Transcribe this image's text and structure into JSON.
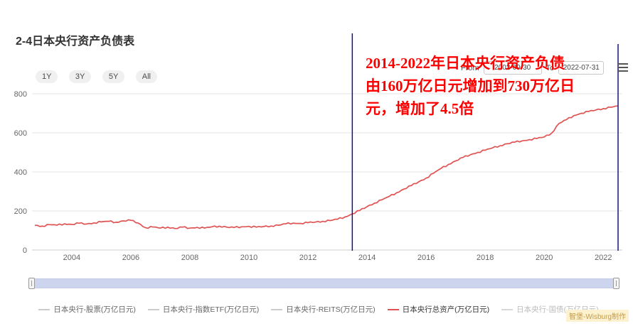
{
  "title": "2-4日本央行资产负债表",
  "range_buttons": [
    "1Y",
    "3Y",
    "5Y",
    "All"
  ],
  "date_range": {
    "from_label": "From",
    "from_value": "2002-09-30",
    "to_label": "To",
    "to_value": "2022-07-31"
  },
  "annotation": {
    "lines": [
      "2014-2022年日本央行资产负债",
      "由160万亿日元增加到730万亿日",
      "元，增加了4.5倍"
    ],
    "color": "#ff0000"
  },
  "legend": [
    {
      "label": "日本央行-股票(万亿日元)",
      "color": "#cccccc",
      "text_color": "#666666",
      "active": false
    },
    {
      "label": "日本央行-指数ETF(万亿日元)",
      "color": "#cccccc",
      "text_color": "#666666",
      "active": false
    },
    {
      "label": "日本央行-REITS(万亿日元)",
      "color": "#cccccc",
      "text_color": "#666666",
      "active": false
    },
    {
      "label": "日本央行总资产(万亿日元)",
      "color": "#df5353",
      "text_color": "#333333",
      "active": true
    },
    {
      "label": "日本央行-国债(万亿日元)",
      "color": "#d8d8d8",
      "text_color": "#bbbbbb",
      "active": false
    }
  ],
  "watermark": "智堡-Wisburg制作",
  "chart_data": {
    "type": "line",
    "title": "2-4日本央行资产负债表",
    "xlabel": "",
    "ylabel": "万亿日元",
    "grid": "horizontal",
    "legend_position": "bottom",
    "x_ticks": [
      2004,
      2006,
      2008,
      2010,
      2012,
      2014,
      2016,
      2018,
      2020,
      2022
    ],
    "y_ticks": [
      0,
      200,
      400,
      600,
      800
    ],
    "x_range": [
      2002.75,
      2022.5
    ],
    "y_range": [
      0,
      800
    ],
    "x_start": 2002.75,
    "x_step": 0.25,
    "plot_lines": [
      {
        "x": 2013.5,
        "color": "#15157a"
      },
      {
        "x": 2022.5,
        "color": "#15157a"
      }
    ],
    "series": [
      {
        "name": "日本央行总资产(万亿日元)",
        "color": "#df5353",
        "values": [
          126,
          122,
          130,
          127,
          134,
          131,
          137,
          133,
          139,
          144,
          147,
          142,
          149,
          152,
          138,
          114,
          118,
          112,
          117,
          110,
          117,
          112,
          116,
          112,
          119,
          122,
          117,
          115,
          119,
          121,
          117,
          120,
          123,
          127,
          134,
          138,
          136,
          140,
          143,
          147,
          151,
          158,
          169,
          185,
          202,
          222,
          240,
          257,
          274,
          293,
          312,
          330,
          349,
          368,
          393,
          417,
          438,
          456,
          474,
          488,
          500,
          511,
          523,
          534,
          544,
          552,
          559,
          565,
          571,
          579,
          598,
          648,
          667,
          688,
          700,
          709,
          717,
          724,
          731,
          737
        ]
      }
    ]
  }
}
